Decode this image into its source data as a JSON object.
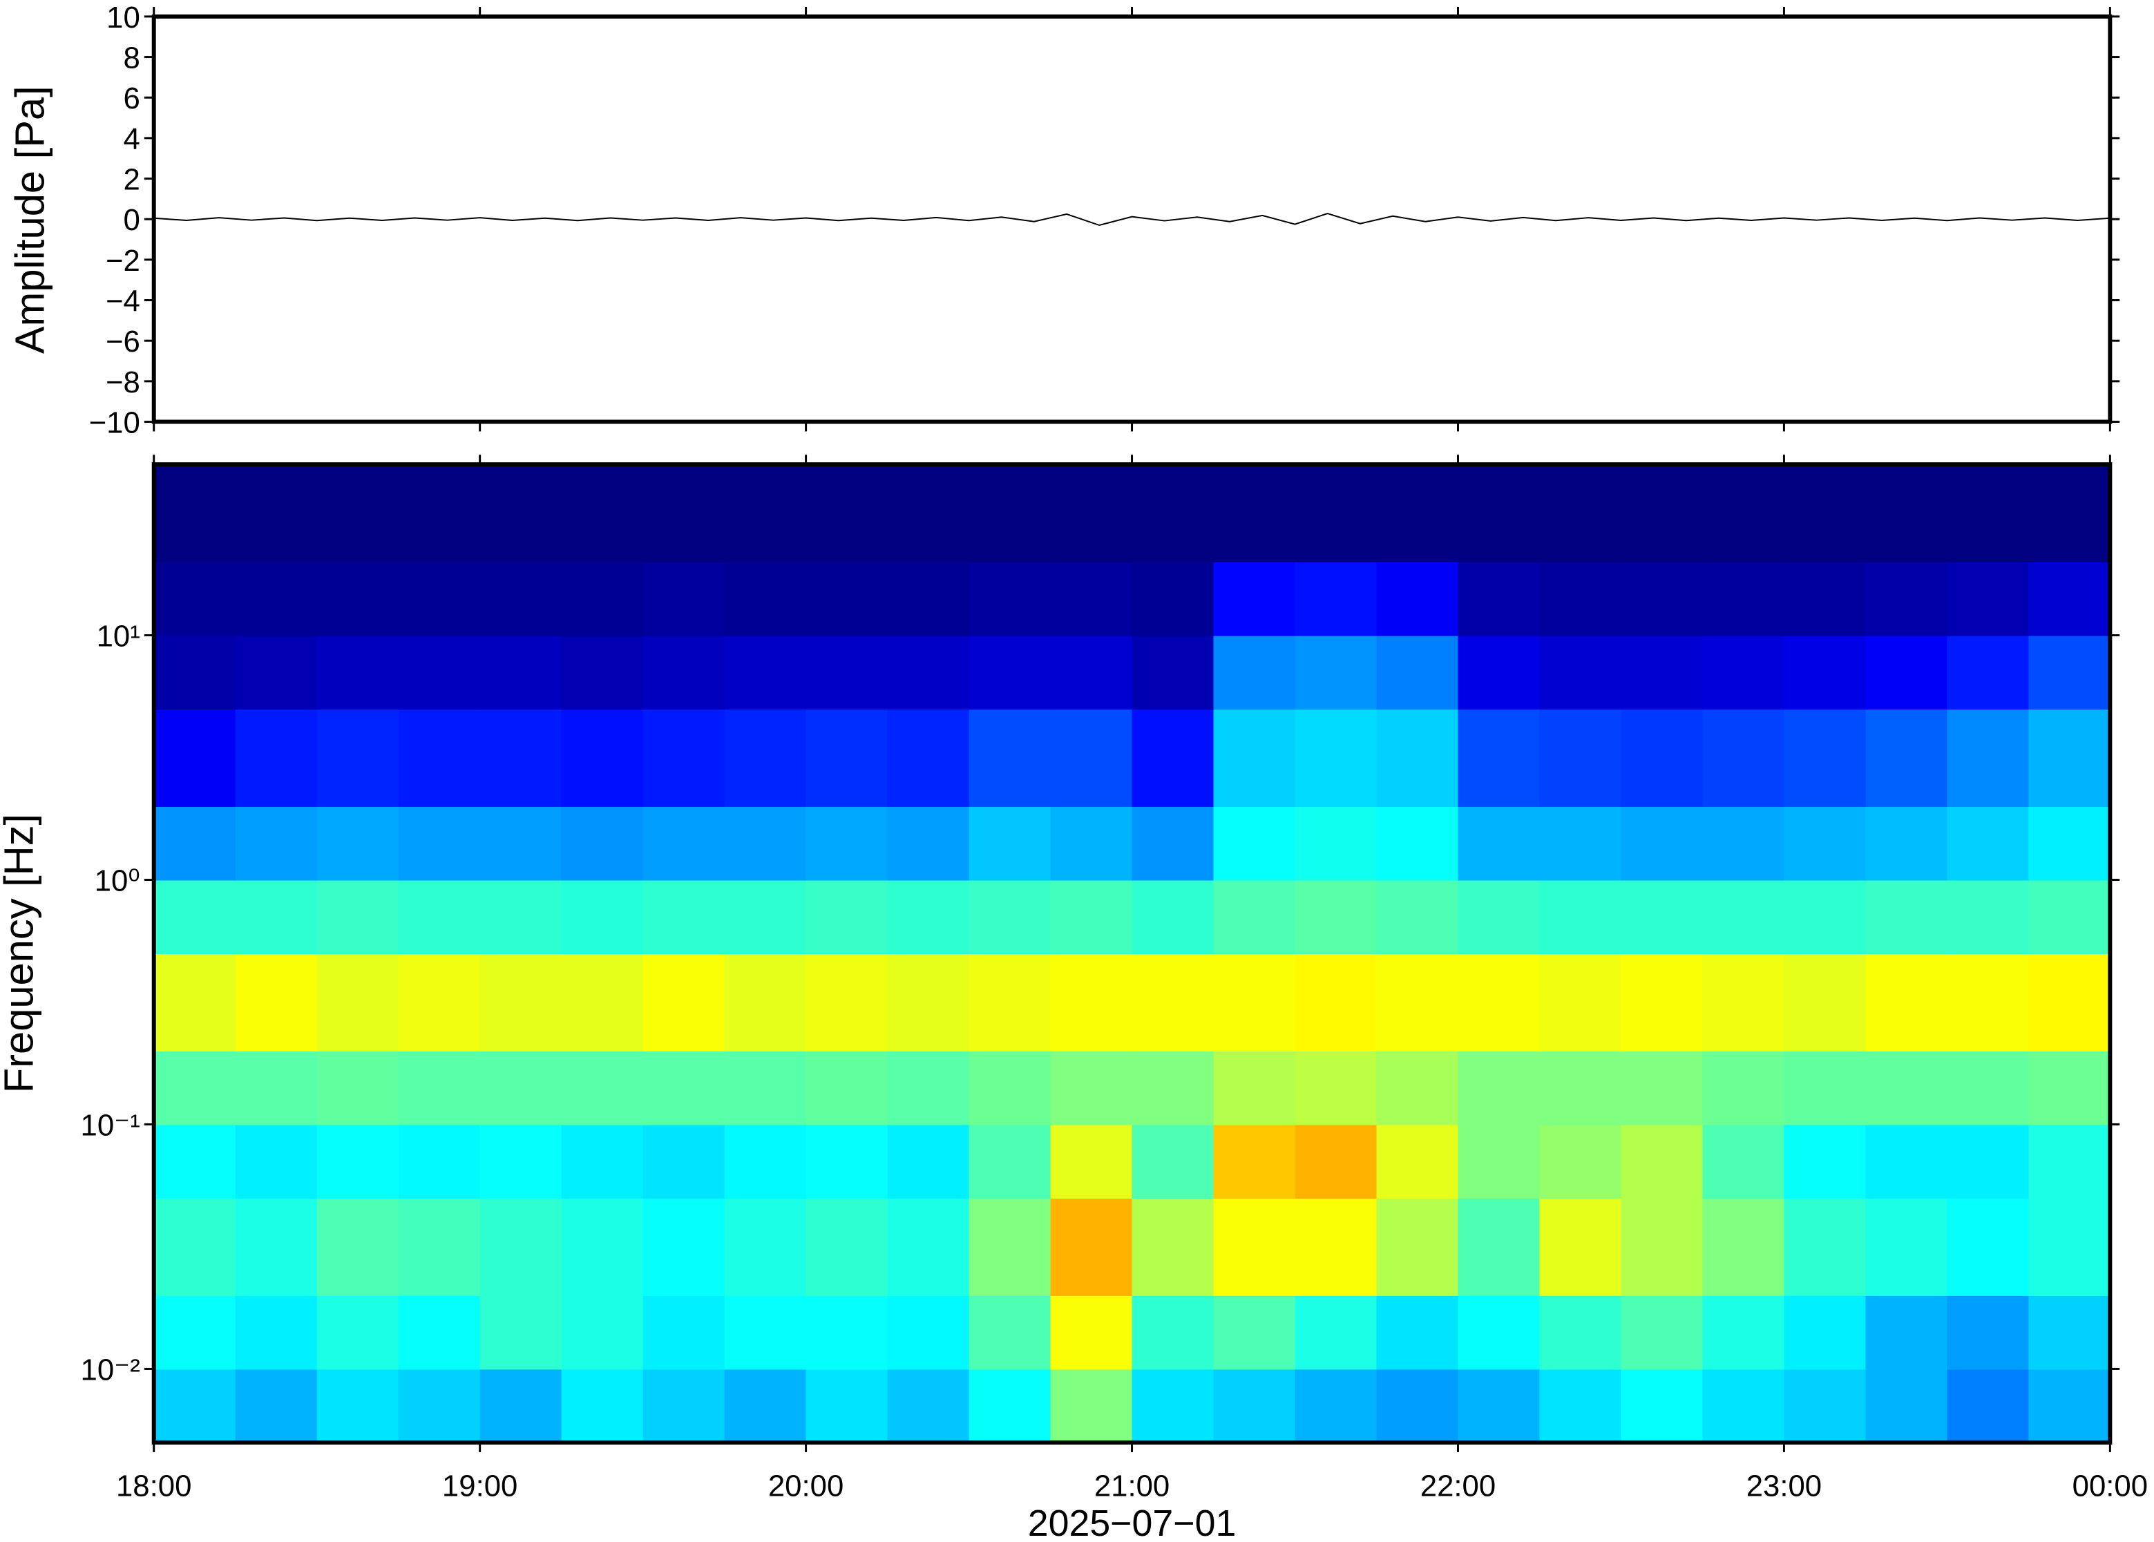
{
  "chart_data": [
    {
      "type": "line",
      "ylabel": "Amplitude [Pa]",
      "color": "#000000",
      "x": [
        18,
        18.1,
        18.2,
        18.3,
        18.4,
        18.5,
        18.6,
        18.7,
        18.8,
        18.9,
        19,
        19.1,
        19.2,
        19.3,
        19.4,
        19.5,
        19.6,
        19.7,
        19.8,
        19.9,
        20,
        20.1,
        20.2,
        20.3,
        20.4,
        20.5,
        20.6,
        20.7,
        20.8,
        20.9,
        21,
        21.1,
        21.2,
        21.3,
        21.4,
        21.5,
        21.6,
        21.7,
        21.8,
        21.9,
        22,
        22.1,
        22.2,
        22.3,
        22.4,
        22.5,
        22.6,
        22.7,
        22.8,
        22.9,
        23,
        23.1,
        23.2,
        23.3,
        23.4,
        23.5,
        23.6,
        23.7,
        23.8,
        23.9,
        24
      ],
      "values": [
        0.05,
        -0.06,
        0.07,
        -0.05,
        0.06,
        -0.07,
        0.05,
        -0.06,
        0.06,
        -0.05,
        0.07,
        -0.06,
        0.05,
        -0.07,
        0.06,
        -0.05,
        0.06,
        -0.06,
        0.07,
        -0.05,
        0.06,
        -0.07,
        0.05,
        -0.06,
        0.08,
        -0.07,
        0.1,
        -0.12,
        0.25,
        -0.3,
        0.12,
        -0.08,
        0.1,
        -0.12,
        0.18,
        -0.25,
        0.28,
        -0.22,
        0.15,
        -0.12,
        0.1,
        -0.09,
        0.08,
        -0.07,
        0.07,
        -0.06,
        0.06,
        -0.07,
        0.05,
        -0.06,
        0.06,
        -0.05,
        0.06,
        -0.06,
        0.05,
        -0.07,
        0.06,
        -0.05,
        0.06,
        -0.06,
        0.05
      ],
      "xlim": [
        18,
        24
      ],
      "xticks": [
        18,
        19,
        20,
        21,
        22,
        23,
        24
      ],
      "ylim": [
        -10,
        10
      ],
      "yticks": [
        {
          "value": -10,
          "label": "−10"
        },
        {
          "value": -8,
          "label": "−8"
        },
        {
          "value": -6,
          "label": "−6"
        },
        {
          "value": -4,
          "label": "−4"
        },
        {
          "value": -2,
          "label": "−2"
        },
        0,
        2,
        4,
        6,
        8,
        10
      ]
    },
    {
      "type": "heatmap",
      "ylabel": "Frequency [Hz]",
      "xlabel": "2025−07−01",
      "colormap": "jet",
      "log_y": true,
      "xlim": [
        18,
        24
      ],
      "xticks": [
        {
          "value": 18,
          "label": "18:00"
        },
        {
          "value": 19,
          "label": "19:00"
        },
        {
          "value": 20,
          "label": "20:00"
        },
        {
          "value": 21,
          "label": "21:00"
        },
        {
          "value": 22,
          "label": "22:00"
        },
        {
          "value": 23,
          "label": "23:00"
        },
        {
          "value": 24,
          "label": "00:00"
        }
      ],
      "ylim": [
        0.005,
        50
      ],
      "yticks": [
        {
          "value": 0.01,
          "label": "10⁻²"
        },
        {
          "value": 0.1,
          "label": "10⁻¹"
        },
        {
          "value": 1,
          "label": "10⁰"
        },
        {
          "value": 10,
          "label": "10¹"
        }
      ],
      "x_bins": [
        18,
        18.25,
        18.5,
        18.75,
        19,
        19.25,
        19.5,
        19.75,
        20,
        20.25,
        20.5,
        20.75,
        21,
        21.25,
        21.5,
        21.75,
        22,
        22.25,
        22.5,
        22.75,
        23,
        23.25,
        23.5,
        23.75,
        24
      ],
      "y_bins": [
        0.005,
        0.01,
        0.02,
        0.05,
        0.1,
        0.2,
        0.5,
        1,
        2,
        5,
        10,
        20,
        50
      ],
      "values": [
        [
          0.33,
          0.3,
          0.35,
          0.33,
          0.3,
          0.36,
          0.33,
          0.3,
          0.35,
          0.32,
          0.38,
          0.5,
          0.35,
          0.33,
          0.3,
          0.28,
          0.3,
          0.35,
          0.38,
          0.35,
          0.33,
          0.3,
          0.25,
          0.3
        ],
        [
          0.38,
          0.36,
          0.4,
          0.38,
          0.42,
          0.4,
          0.36,
          0.38,
          0.38,
          0.37,
          0.45,
          0.62,
          0.42,
          0.45,
          0.4,
          0.35,
          0.38,
          0.42,
          0.45,
          0.4,
          0.36,
          0.3,
          0.28,
          0.33
        ],
        [
          0.42,
          0.4,
          0.45,
          0.44,
          0.42,
          0.4,
          0.38,
          0.4,
          0.42,
          0.4,
          0.5,
          0.7,
          0.55,
          0.62,
          0.62,
          0.55,
          0.45,
          0.6,
          0.55,
          0.5,
          0.42,
          0.4,
          0.38,
          0.4
        ],
        [
          0.38,
          0.36,
          0.38,
          0.37,
          0.38,
          0.36,
          0.35,
          0.37,
          0.38,
          0.36,
          0.45,
          0.6,
          0.45,
          0.68,
          0.7,
          0.6,
          0.5,
          0.52,
          0.55,
          0.45,
          0.38,
          0.36,
          0.36,
          0.4
        ],
        [
          0.46,
          0.46,
          0.47,
          0.46,
          0.46,
          0.46,
          0.46,
          0.46,
          0.47,
          0.46,
          0.48,
          0.5,
          0.5,
          0.55,
          0.56,
          0.54,
          0.5,
          0.5,
          0.5,
          0.48,
          0.47,
          0.47,
          0.47,
          0.48
        ],
        [
          0.6,
          0.62,
          0.6,
          0.61,
          0.6,
          0.6,
          0.62,
          0.6,
          0.61,
          0.6,
          0.61,
          0.62,
          0.62,
          0.62,
          0.63,
          0.62,
          0.62,
          0.61,
          0.62,
          0.61,
          0.6,
          0.62,
          0.62,
          0.63
        ],
        [
          0.42,
          0.42,
          0.43,
          0.42,
          0.42,
          0.41,
          0.42,
          0.42,
          0.43,
          0.42,
          0.43,
          0.44,
          0.42,
          0.45,
          0.46,
          0.45,
          0.43,
          0.42,
          0.42,
          0.42,
          0.42,
          0.43,
          0.43,
          0.44
        ],
        [
          0.27,
          0.28,
          0.29,
          0.28,
          0.28,
          0.27,
          0.28,
          0.28,
          0.29,
          0.28,
          0.32,
          0.3,
          0.27,
          0.38,
          0.39,
          0.38,
          0.3,
          0.3,
          0.29,
          0.29,
          0.3,
          0.31,
          0.33,
          0.36
        ],
        [
          0.12,
          0.15,
          0.16,
          0.15,
          0.15,
          0.14,
          0.15,
          0.16,
          0.17,
          0.16,
          0.2,
          0.2,
          0.14,
          0.33,
          0.34,
          0.33,
          0.2,
          0.19,
          0.18,
          0.19,
          0.2,
          0.22,
          0.26,
          0.3
        ],
        [
          0.04,
          0.05,
          0.06,
          0.06,
          0.06,
          0.05,
          0.06,
          0.07,
          0.07,
          0.07,
          0.08,
          0.08,
          0.05,
          0.26,
          0.27,
          0.25,
          0.1,
          0.08,
          0.08,
          0.09,
          0.1,
          0.12,
          0.15,
          0.2
        ],
        [
          0.02,
          0.02,
          0.02,
          0.02,
          0.02,
          0.02,
          0.03,
          0.02,
          0.02,
          0.02,
          0.03,
          0.03,
          0.02,
          0.13,
          0.14,
          0.12,
          0.04,
          0.03,
          0.03,
          0.03,
          0.03,
          0.04,
          0.05,
          0.08
        ],
        [
          0,
          0,
          0,
          0,
          0,
          0,
          0,
          0,
          0,
          0,
          0,
          0,
          0,
          0,
          0,
          0,
          0,
          0,
          0,
          0,
          0,
          0,
          0,
          0
        ]
      ]
    }
  ]
}
